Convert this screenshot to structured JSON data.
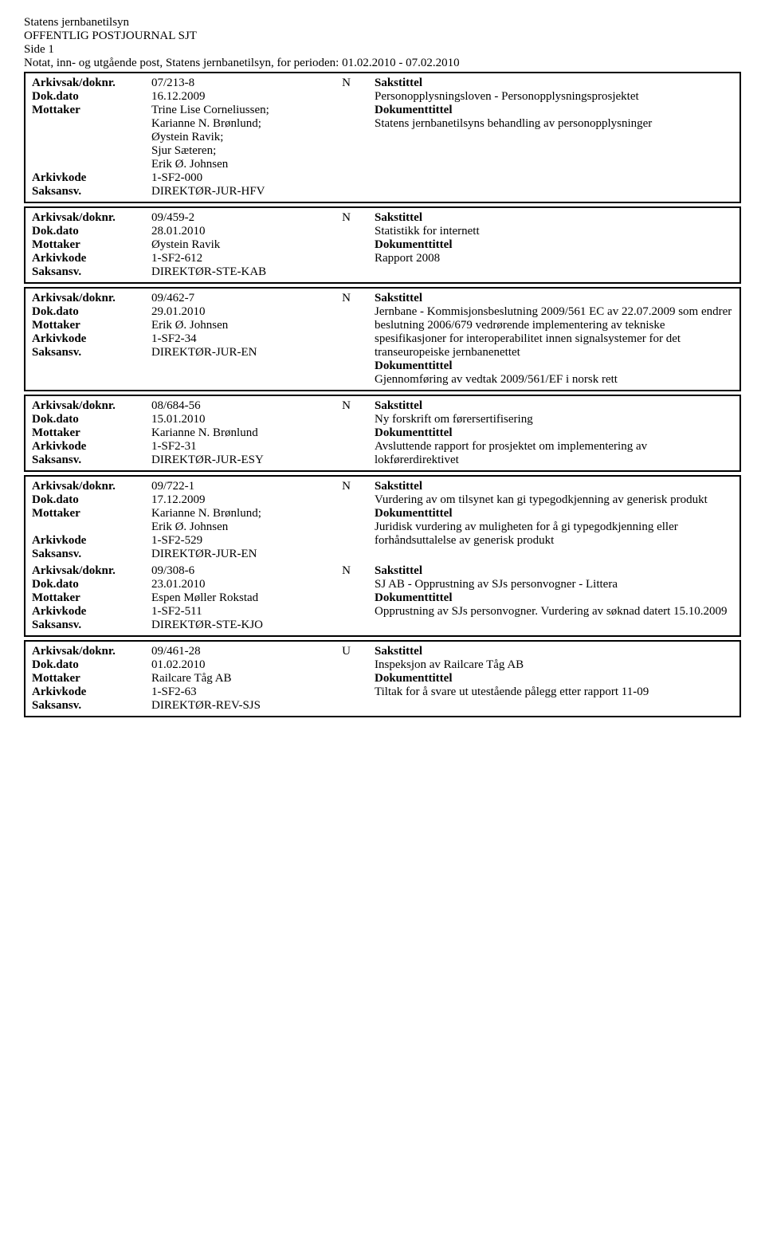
{
  "header": {
    "org": "Statens jernbanetilsyn",
    "title": "OFFENTLIG POSTJOURNAL SJT",
    "side": "Side 1",
    "sub": "Notat, inn- og utgående post, Statens jernbanetilsyn, for perioden: 01.02.2010 - 07.02.2010"
  },
  "labels": {
    "arkivsak": "Arkivsak/doknr.",
    "dokdato": "Dok.dato",
    "mottaker": "Mottaker",
    "arkivkode": "Arkivkode",
    "saksansv": "Saksansv.",
    "sakstittel": "Sakstittel",
    "doktittel": "Dokumenttittel"
  },
  "entries": [
    {
      "arkivsak": "07/213-8",
      "type": "N",
      "dokdato": "16.12.2009",
      "mottaker": "Trine Lise Corneliussen;\nKarianne N. Brønlund;\nØystein Ravik;\nSjur Sæteren;\nErik Ø. Johnsen",
      "arkivkode": "1-SF2-000",
      "saksansv": "DIREKTØR-JUR-HFV",
      "sakstittel": "Personopplysningsloven - Personopplysningsprosjektet",
      "doktittel": "Statens jernbanetilsyns behandling av personopplysninger",
      "sak_lines": 2,
      "gap_lines": 2,
      "dok_lines": 2
    },
    {
      "arkivsak": "09/459-2",
      "type": "N",
      "dokdato": "28.01.2010",
      "mottaker": "Øystein Ravik",
      "arkivkode": "1-SF2-612",
      "saksansv": "DIREKTØR-STE-KAB",
      "sakstittel": "Statistikk for internett",
      "doktittel": "Rapport 2008",
      "sak_lines": 1,
      "gap_lines": 1,
      "dok_lines": 1
    },
    {
      "arkivsak": "09/462-7",
      "type": "N",
      "dokdato": "29.01.2010",
      "mottaker": "Erik Ø. Johnsen",
      "arkivkode": "1-SF2-34",
      "saksansv": "DIREKTØR-JUR-EN",
      "sakstittel": "Jernbane - Kommisjonsbeslutning 2009/561 EC av 22.07.2009 som endrer beslutning 2006/679 vedrørende implementering av tekniske spesifikasjoner for interoperabilitet innen signalsystemer for det transeuropeiske jernbanenettet",
      "doktittel": "Gjennomføring av vedtak 2009/561/EF i norsk rett",
      "sak_lines": 6,
      "gap_lines": 0,
      "dok_lines": 1
    },
    {
      "arkivsak": "08/684-56",
      "type": "N",
      "dokdato": "15.01.2010",
      "mottaker": "Karianne N. Brønlund",
      "arkivkode": "1-SF2-31",
      "saksansv": "DIREKTØR-JUR-ESY",
      "sakstittel": "Ny forskrift om førersertifisering",
      "doktittel": "Avsluttende rapport for prosjektet om implementering av lokførerdirektivet",
      "sak_lines": 1,
      "gap_lines": 1,
      "dok_lines": 2
    },
    {
      "arkivsak": "09/722-1",
      "type": "N",
      "dokdato": "17.12.2009",
      "mottaker": "Karianne N. Brønlund;\nErik Ø. Johnsen",
      "arkivkode": "1-SF2-529",
      "saksansv": "DIREKTØR-JUR-EN",
      "sakstittel": "Vurdering av om tilsynet kan gi typegodkjenning av generisk produkt",
      "doktittel": "Juridisk vurdering av muligheten for å gi typegodkjenning eller forhåndsuttalelse av generisk produkt",
      "sak_lines": 2,
      "gap_lines": 0,
      "dok_lines": 3,
      "joined": true
    },
    {
      "arkivsak": "09/308-6",
      "type": "N",
      "dokdato": "23.01.2010",
      "mottaker": "Espen Møller Rokstad",
      "arkivkode": "1-SF2-511",
      "saksansv": "DIREKTØR-STE-KJO",
      "sakstittel": "SJ AB - Opprustning av SJs personvogner - Littera",
      "doktittel": "Opprustning av SJs personvogner. Vurdering av søknad datert 15.10.2009",
      "sak_lines": 2,
      "gap_lines": 0,
      "dok_lines": 2,
      "joined_continue": true
    },
    {
      "arkivsak": "09/461-28",
      "type": "U",
      "dokdato": "01.02.2010",
      "mottaker": "Railcare Tåg AB",
      "arkivkode": "1-SF2-63",
      "saksansv": "DIREKTØR-REV-SJS",
      "sakstittel": "Inspeksjon av Railcare Tåg AB",
      "doktittel": "Tiltak for å svare ut utestående pålegg etter rapport 11-09",
      "sak_lines": 1,
      "gap_lines": 1,
      "dok_lines": 2
    }
  ]
}
